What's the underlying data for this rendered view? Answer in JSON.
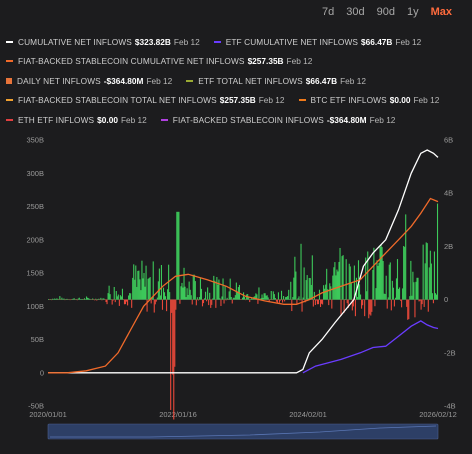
{
  "range_buttons": [
    {
      "label": "7d",
      "active": false
    },
    {
      "label": "30d",
      "active": false
    },
    {
      "label": "90d",
      "active": false
    },
    {
      "label": "1y",
      "active": false
    },
    {
      "label": "Max",
      "active": true
    }
  ],
  "legend": {
    "rows": [
      [
        {
          "label": "CUMULATIVE NET INFLOWS",
          "value": "$323.82B",
          "date": "Feb 12",
          "color": "#ffffff",
          "square": false
        },
        {
          "label": "ETF CUMULATIVE NET INFLOWS",
          "value": "$66.47B",
          "date": "Feb 12",
          "color": "#6a3cff",
          "square": false
        }
      ],
      [
        {
          "label": "FIAT-BACKED STABLECOIN CUMULATIVE NET INFLOWS",
          "value": "$257.35B",
          "date": "Feb 12",
          "color": "#f06a2a",
          "square": false
        }
      ],
      [
        {
          "label": "DAILY NET INFLOWS",
          "value": "-$364.80M",
          "date": "Feb 12",
          "color": "#e8743a",
          "square": true
        },
        {
          "label": "ETF TOTAL NET INFLOWS",
          "value": "$66.47B",
          "date": "Feb 12",
          "color": "#9aaa33",
          "square": false
        }
      ],
      [
        {
          "label": "FIAT-BACKED STABLECOIN TOTAL NET INFLOWS",
          "value": "$257.35B",
          "date": "Feb 12",
          "color": "#f0a030",
          "square": false
        },
        {
          "label": "BTC ETF INFLOWS",
          "value": "$0.00",
          "date": "Feb 12",
          "color": "#f07a1a",
          "square": false
        }
      ],
      [
        {
          "label": "ETH ETF INFLOWS",
          "value": "$0.00",
          "date": "Feb 12",
          "color": "#e04040",
          "square": false
        },
        {
          "label": "FIAT-BACKED STABLECOIN INFLOWS",
          "value": "-$364.80M",
          "date": "Feb 12",
          "color": "#b040e0",
          "square": false
        }
      ]
    ]
  },
  "chart_data": {
    "type": "line",
    "left_axis": {
      "ticks": [
        "-50B",
        "0",
        "50B",
        "100B",
        "150B",
        "200B",
        "250B",
        "300B",
        "350B"
      ],
      "range": [
        -50,
        350
      ]
    },
    "right_axis": {
      "ticks": [
        "-4B",
        "-2B",
        "0",
        "2B",
        "4B",
        "6B"
      ],
      "range": [
        -4,
        6
      ]
    },
    "x_axis": {
      "ticks": [
        "2020/01/01",
        "2022/01/16",
        "2024/02/01",
        "2026/02/12"
      ],
      "range": [
        2020.0,
        2026.12
      ]
    },
    "series": [
      {
        "name": "CUMULATIVE NET INFLOWS",
        "color": "#ffffff",
        "axis": "left",
        "x": [
          2020.0,
          2020.5,
          2021.0,
          2021.3,
          2021.6,
          2022.0,
          2022.3,
          2022.6,
          2022.9,
          2023.2,
          2023.6,
          2023.9,
          2024.0,
          2024.1,
          2024.3,
          2024.5,
          2024.8,
          2024.95,
          2025.1,
          2025.3,
          2025.5,
          2025.7,
          2025.85,
          2025.95,
          2026.05,
          2026.12
        ],
        "y": [
          0,
          0,
          0,
          0,
          0,
          0,
          0,
          0,
          0,
          0,
          0,
          0,
          5,
          30,
          50,
          75,
          110,
          160,
          180,
          200,
          245,
          300,
          330,
          335,
          330,
          323.82
        ]
      },
      {
        "name": "FIAT-BACKED STABLECOIN CUMULATIVE NET INFLOWS",
        "color": "#f06a2a",
        "axis": "left",
        "x": [
          2020.0,
          2020.3,
          2020.6,
          2020.9,
          2021.1,
          2021.3,
          2021.5,
          2021.8,
          2022.0,
          2022.2,
          2022.5,
          2022.8,
          2023.1,
          2023.4,
          2023.7,
          2023.9,
          2024.1,
          2024.3,
          2024.6,
          2024.9,
          2025.1,
          2025.3,
          2025.5,
          2025.7,
          2025.85,
          2026.0,
          2026.12
        ],
        "y": [
          0,
          0,
          3,
          10,
          30,
          65,
          100,
          130,
          145,
          148,
          140,
          130,
          115,
          108,
          103,
          103,
          110,
          120,
          130,
          140,
          160,
          180,
          200,
          220,
          240,
          262,
          257.35
        ]
      },
      {
        "name": "ETF CUMULATIVE NET INFLOWS",
        "color": "#6a3cff",
        "axis": "left",
        "x": [
          2024.0,
          2024.2,
          2024.4,
          2024.6,
          2024.9,
          2025.1,
          2025.3,
          2025.5,
          2025.7,
          2025.85,
          2025.95,
          2026.05,
          2026.12
        ],
        "y": [
          0,
          10,
          15,
          20,
          30,
          38,
          40,
          55,
          70,
          78,
          72,
          68,
          66.47
        ]
      }
    ],
    "daily_bars": {
      "name": "DAILY NET INFLOWS",
      "axis": "right",
      "positive_color": "#3dc95a",
      "negative_color": "#e8483a"
    }
  }
}
